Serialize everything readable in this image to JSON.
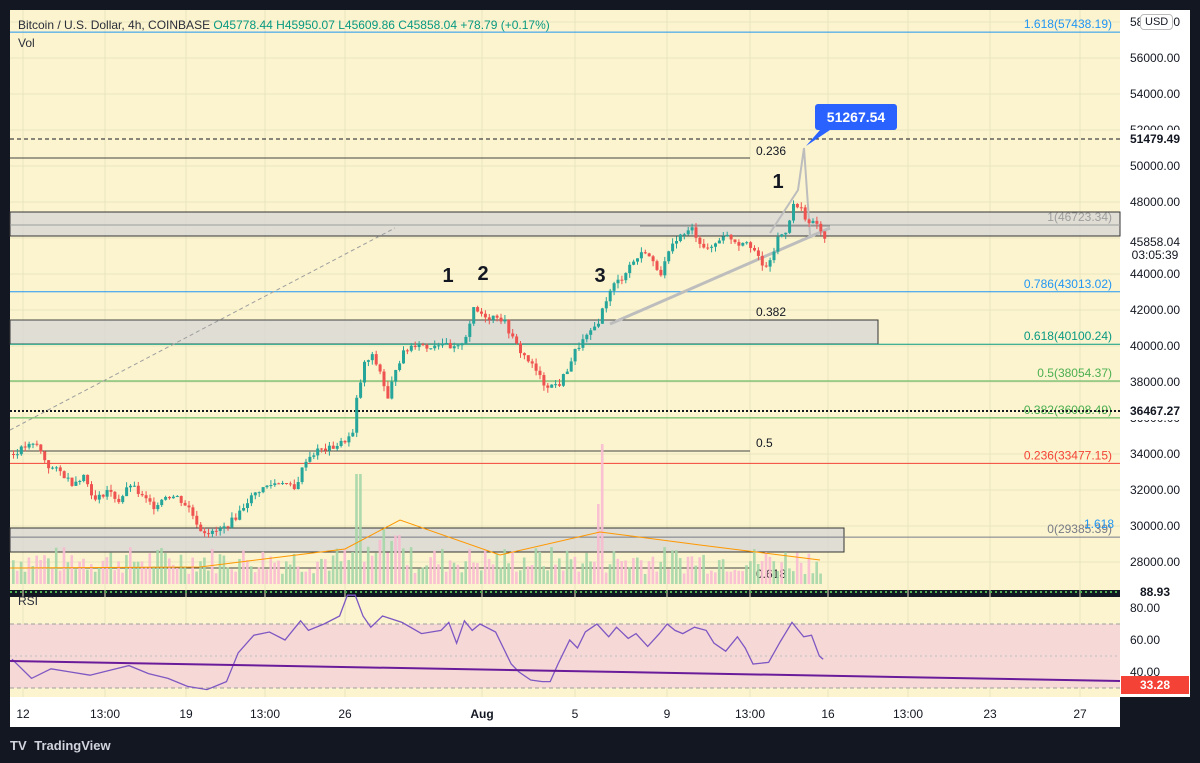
{
  "header": {
    "symbol": "Bitcoin / U.S. Dollar, 4h, COINBASE",
    "open": "O45778.44",
    "high": "H45950.07",
    "low": "L45609.86",
    "close": "C45858.04",
    "change": "+78.79 (+0.17%)",
    "volume_label": "Vol",
    "rsi_label": "RSI",
    "currency": "USD"
  },
  "footer": {
    "logo_text": "TradingView"
  },
  "colors": {
    "background": "#fbf4cf",
    "outer": "#131722",
    "up": "#26a69a",
    "down": "#ef5350",
    "rsi_line": "#7e57c2",
    "rsi_band": "#f6d9d7",
    "callout": "#2962ff"
  },
  "chart_data": {
    "type": "candlestick",
    "price_axis": {
      "ticks": [
        28000,
        30000,
        32000,
        34000,
        36000,
        38000,
        40000,
        42000,
        44000,
        46000,
        48000,
        50000,
        52000,
        54000,
        56000,
        58000
      ]
    },
    "time_axis": {
      "labels": [
        "12",
        "13:00",
        "19",
        "13:00",
        "26",
        "Aug",
        "5",
        "9",
        "13:00",
        "16",
        "13:00",
        "23",
        "27"
      ]
    },
    "close_path": [
      [
        0,
        34000
      ],
      [
        3,
        34400
      ],
      [
        6,
        34500
      ],
      [
        9,
        33300
      ],
      [
        12,
        33000
      ],
      [
        15,
        32400
      ],
      [
        18,
        32800
      ],
      [
        21,
        31400
      ],
      [
        24,
        32000
      ],
      [
        27,
        31400
      ],
      [
        30,
        32300
      ],
      [
        33,
        31600
      ],
      [
        36,
        31100
      ],
      [
        39,
        31700
      ],
      [
        42,
        31600
      ],
      [
        45,
        31000
      ],
      [
        48,
        29800
      ],
      [
        51,
        29600
      ],
      [
        54,
        29900
      ],
      [
        57,
        30500
      ],
      [
        60,
        31400
      ],
      [
        63,
        32000
      ],
      [
        66,
        32300
      ],
      [
        69,
        32500
      ],
      [
        72,
        32000
      ],
      [
        75,
        33700
      ],
      [
        78,
        34200
      ],
      [
        81,
        34300
      ],
      [
        84,
        34600
      ],
      [
        87,
        35100
      ],
      [
        88,
        37000
      ],
      [
        90,
        39000
      ],
      [
        92,
        39400
      ],
      [
        94,
        38600
      ],
      [
        96,
        37000
      ],
      [
        98,
        38800
      ],
      [
        100,
        39600
      ],
      [
        102,
        40000
      ],
      [
        104,
        40200
      ],
      [
        106,
        39900
      ],
      [
        108,
        40100
      ],
      [
        110,
        40200
      ],
      [
        112,
        39800
      ],
      [
        114,
        39900
      ],
      [
        116,
        40600
      ],
      [
        118,
        42000
      ],
      [
        120,
        41800
      ],
      [
        122,
        41600
      ],
      [
        124,
        41700
      ],
      [
        126,
        41300
      ],
      [
        128,
        40400
      ],
      [
        130,
        39700
      ],
      [
        132,
        39200
      ],
      [
        134,
        38600
      ],
      [
        136,
        37900
      ],
      [
        138,
        37800
      ],
      [
        140,
        37900
      ],
      [
        142,
        38700
      ],
      [
        144,
        39700
      ],
      [
        146,
        40300
      ],
      [
        148,
        40700
      ],
      [
        150,
        41400
      ],
      [
        152,
        42600
      ],
      [
        154,
        43400
      ],
      [
        156,
        43800
      ],
      [
        158,
        44500
      ],
      [
        160,
        44900
      ],
      [
        162,
        45300
      ],
      [
        164,
        44600
      ],
      [
        166,
        44100
      ],
      [
        168,
        45100
      ],
      [
        170,
        46000
      ],
      [
        172,
        46200
      ],
      [
        174,
        46500
      ],
      [
        176,
        45800
      ],
      [
        178,
        45300
      ],
      [
        180,
        45700
      ],
      [
        182,
        46200
      ],
      [
        184,
        46000
      ],
      [
        186,
        45700
      ],
      [
        188,
        45900
      ],
      [
        190,
        45300
      ],
      [
        192,
        44400
      ],
      [
        194,
        44600
      ],
      [
        196,
        46000
      ],
      [
        198,
        46400
      ],
      [
        200,
        47800
      ],
      [
        202,
        47600
      ],
      [
        204,
        46800
      ],
      [
        206,
        46800
      ],
      [
        208,
        45858
      ]
    ],
    "rsi": {
      "overbought": 70,
      "oversold": 30,
      "current": 47.5,
      "path": [
        [
          0,
          48
        ],
        [
          5,
          36
        ],
        [
          10,
          42
        ],
        [
          15,
          40
        ],
        [
          20,
          38
        ],
        [
          25,
          41
        ],
        [
          30,
          44
        ],
        [
          35,
          39
        ],
        [
          40,
          36
        ],
        [
          45,
          31
        ],
        [
          50,
          29
        ],
        [
          55,
          34
        ],
        [
          58,
          52
        ],
        [
          62,
          63
        ],
        [
          66,
          65
        ],
        [
          70,
          60
        ],
        [
          74,
          72
        ],
        [
          76,
          66
        ],
        [
          80,
          70
        ],
        [
          84,
          75
        ],
        [
          86,
          88
        ],
        [
          88,
          88
        ],
        [
          90,
          75
        ],
        [
          92,
          68
        ],
        [
          95,
          75
        ],
        [
          100,
          71
        ],
        [
          105,
          64
        ],
        [
          110,
          66
        ],
        [
          112,
          71
        ],
        [
          114,
          58
        ],
        [
          116,
          72
        ],
        [
          118,
          66
        ],
        [
          120,
          70
        ],
        [
          124,
          65
        ],
        [
          126,
          55
        ],
        [
          128,
          45
        ],
        [
          130,
          40
        ],
        [
          133,
          35
        ],
        [
          136,
          34
        ],
        [
          138,
          34
        ],
        [
          140,
          45
        ],
        [
          143,
          60
        ],
        [
          145,
          55
        ],
        [
          147,
          65
        ],
        [
          150,
          70
        ],
        [
          153,
          62
        ],
        [
          155,
          68
        ],
        [
          158,
          61
        ],
        [
          160,
          64
        ],
        [
          163,
          56
        ],
        [
          166,
          64
        ],
        [
          168,
          70
        ],
        [
          170,
          66
        ],
        [
          172,
          64
        ],
        [
          175,
          68
        ],
        [
          178,
          66
        ],
        [
          180,
          58
        ],
        [
          183,
          53
        ],
        [
          186,
          62
        ],
        [
          188,
          55
        ],
        [
          190,
          45
        ],
        [
          194,
          46
        ],
        [
          197,
          59
        ],
        [
          200,
          71
        ],
        [
          203,
          62
        ],
        [
          205,
          63
        ],
        [
          207,
          50
        ],
        [
          208,
          48
        ]
      ],
      "trend_label": "88.93",
      "low_label": "33.28",
      "axis_ticks": [
        80,
        60,
        40
      ]
    },
    "price_labels": [
      {
        "text": "51479.49",
        "style": "dark"
      },
      {
        "text": "45858.04",
        "style": "light"
      },
      {
        "text": "03:05:39",
        "style": "light"
      },
      {
        "text": "36467.27",
        "style": "dark"
      }
    ],
    "fib_labels": [
      {
        "text": "1.618(57438.19)",
        "price": 57438.19,
        "color": "#2196f3"
      },
      {
        "text": "1(46723.34)",
        "price": 46723.34,
        "color": "#9e9e9e"
      },
      {
        "text": "0.786(43013.02)",
        "price": 43013.02,
        "color": "#2196f3"
      },
      {
        "text": "0.618(40100.24)",
        "price": 40100.24,
        "color": "#089981"
      },
      {
        "text": "0.5(38054.37)",
        "price": 38054.37,
        "color": "#4caf50"
      },
      {
        "text": "0.382(36008.49)",
        "price": 36008.49,
        "color": "#4caf50"
      },
      {
        "text": "0.236(33477.15)",
        "price": 33477.15,
        "color": "#f44336"
      },
      {
        "text": "0(29385.39)",
        "price": 29385.39,
        "color": "#787b86"
      }
    ],
    "annotations": [
      {
        "text": "0.236"
      },
      {
        "text": "0.382"
      },
      {
        "text": "0.5"
      },
      {
        "text": "1.618"
      },
      {
        "text": "0.618"
      }
    ],
    "wave_labels": [
      "1",
      "2",
      "3",
      "1"
    ],
    "callout": "51267.54"
  }
}
